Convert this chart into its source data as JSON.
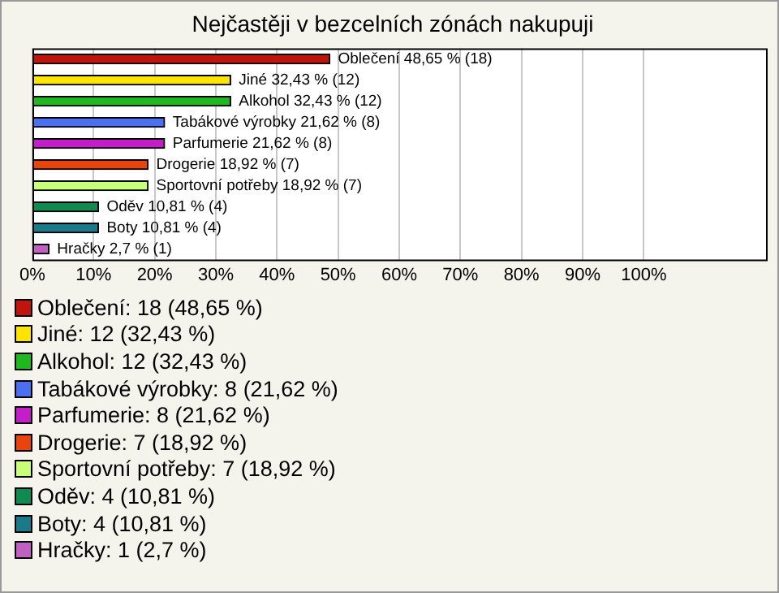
{
  "chart_data": {
    "type": "bar",
    "orientation": "horizontal",
    "title": "Nejčastěji v bezcelních zónách nakupuji",
    "categories": [
      null,
      null,
      null,
      null,
      null,
      null,
      null,
      null,
      null,
      null
    ],
    "series": [
      {
        "name": "Oblečení: 18 (48,65 %)",
        "color": "#c0150c",
        "values": [
          48.65,
          null,
          null,
          null,
          null,
          null,
          null,
          null,
          null,
          null
        ],
        "value_labels": [
          "Oblečení 48,65 % (18)",
          null,
          null,
          null,
          null,
          null,
          null,
          null,
          null,
          null
        ]
      },
      {
        "name": "Jiné: 12 (32,43 %)",
        "color": "#ffe400",
        "values": [
          null,
          32.43,
          null,
          null,
          null,
          null,
          null,
          null,
          null,
          null
        ],
        "value_labels": [
          null,
          "Jiné 32,43 % (12)",
          null,
          null,
          null,
          null,
          null,
          null,
          null,
          null
        ]
      },
      {
        "name": "Alkohol: 12 (32,43 %)",
        "color": "#1fb81f",
        "values": [
          null,
          null,
          32.43,
          null,
          null,
          null,
          null,
          null,
          null,
          null
        ],
        "value_labels": [
          null,
          null,
          "Alkohol 32,43 % (12)",
          null,
          null,
          null,
          null,
          null,
          null,
          null
        ]
      },
      {
        "name": "Tabákové výrobky: 8 (21,62 %)",
        "color": "#4a6ff0",
        "values": [
          null,
          null,
          null,
          21.62,
          null,
          null,
          null,
          null,
          null,
          null
        ],
        "value_labels": [
          null,
          null,
          null,
          "Tabákové výrobky 21,62 % (8)",
          null,
          null,
          null,
          null,
          null,
          null
        ]
      },
      {
        "name": "Parfumerie: 8 (21,62 %)",
        "color": "#c21fc8",
        "values": [
          null,
          null,
          null,
          null,
          21.62,
          null,
          null,
          null,
          null,
          null
        ],
        "value_labels": [
          null,
          null,
          null,
          null,
          "Parfumerie 21,62 % (8)",
          null,
          null,
          null,
          null,
          null
        ]
      },
      {
        "name": "Drogerie: 7 (18,92 %)",
        "color": "#e8440c",
        "values": [
          null,
          null,
          null,
          null,
          null,
          18.92,
          null,
          null,
          null,
          null
        ],
        "value_labels": [
          null,
          null,
          null,
          null,
          null,
          "Drogerie 18,92 % (7)",
          null,
          null,
          null,
          null
        ]
      },
      {
        "name": "Sportovní potřeby: 7 (18,92 %)",
        "color": "#c8ff78",
        "values": [
          null,
          null,
          null,
          null,
          null,
          null,
          18.92,
          null,
          null,
          null
        ],
        "value_labels": [
          null,
          null,
          null,
          null,
          null,
          null,
          "Sportovní potřeby 18,92 % (7)",
          null,
          null,
          null
        ]
      },
      {
        "name": "Oděv: 4 (10,81 %)",
        "color": "#0f8a50",
        "values": [
          null,
          null,
          null,
          null,
          null,
          null,
          null,
          10.81,
          null,
          null
        ],
        "value_labels": [
          null,
          null,
          null,
          null,
          null,
          null,
          null,
          "Oděv 10,81 % (4)",
          null,
          null
        ]
      },
      {
        "name": "Boty: 4 (10,81 %)",
        "color": "#1a7a8a",
        "values": [
          null,
          null,
          null,
          null,
          null,
          null,
          null,
          null,
          10.81,
          null
        ],
        "value_labels": [
          null,
          null,
          null,
          null,
          null,
          null,
          null,
          null,
          "Boty 10,81 % (4)",
          null
        ]
      },
      {
        "name": "Hračky: 1 (2,7 %)",
        "color": "#c060c0",
        "values": [
          null,
          null,
          null,
          null,
          null,
          null,
          null,
          null,
          null,
          2.7
        ],
        "value_labels": [
          null,
          null,
          null,
          null,
          null,
          null,
          null,
          null,
          null,
          "Hračky 2,7 % (1)"
        ]
      }
    ],
    "xlim": [
      0,
      120
    ],
    "xticks": [
      {
        "value": 0,
        "label": "0%"
      },
      {
        "value": 10,
        "label": "10%"
      },
      {
        "value": 20,
        "label": "20%"
      },
      {
        "value": 30,
        "label": "30%"
      },
      {
        "value": 40,
        "label": "40%"
      },
      {
        "value": 50,
        "label": "50%"
      },
      {
        "value": 60,
        "label": "60%"
      },
      {
        "value": 70,
        "label": "70%"
      },
      {
        "value": 80,
        "label": "80%"
      },
      {
        "value": 90,
        "label": "90%"
      },
      {
        "value": 100,
        "label": "100%"
      }
    ],
    "grid": "x",
    "legend": "bottom",
    "tick_labels": "x"
  }
}
